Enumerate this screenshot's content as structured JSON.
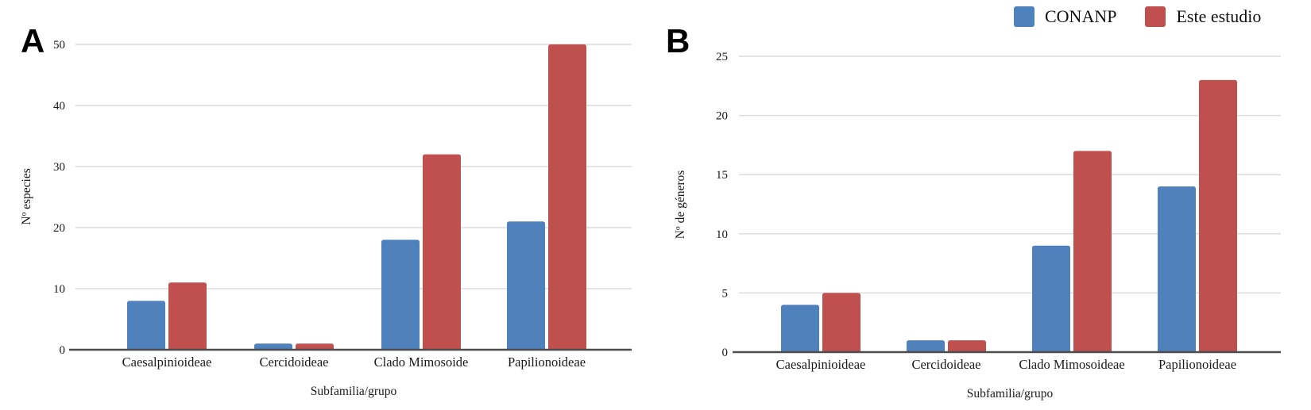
{
  "legend": {
    "position": "top-right",
    "items": [
      {
        "label": "CONANP",
        "color": "#4f81bd"
      },
      {
        "label": "Este estudio",
        "color": "#bf504e"
      }
    ]
  },
  "panels": [
    {
      "letter": "A"
    },
    {
      "letter": "B"
    }
  ],
  "colors": {
    "series_blue": "#4f81bd",
    "series_red": "#bf504e",
    "gridline": "#dcdcdc",
    "axis_line": "#4d4d4d",
    "text": "#1a1a1a"
  },
  "chart_data": [
    {
      "type": "bar",
      "panel": "A",
      "title": "",
      "xlabel": "Subfamilia/grupo",
      "ylabel": "Nº especies",
      "ylim": [
        0,
        50
      ],
      "yticks": [
        0,
        10,
        20,
        30,
        40,
        50
      ],
      "grid": true,
      "legend_position": "top-right",
      "categories": [
        "Caesalpinioideae",
        "Cercidoideae",
        "Clado Mimosoide",
        "Papilionoideae"
      ],
      "series": [
        {
          "name": "CONANP",
          "color": "#4f81bd",
          "values": [
            8,
            1,
            18,
            21
          ]
        },
        {
          "name": "Este estudio",
          "color": "#bf504e",
          "values": [
            11,
            1,
            32,
            50
          ]
        }
      ]
    },
    {
      "type": "bar",
      "panel": "B",
      "title": "",
      "xlabel": "Subfamilia/grupo",
      "ylabel": "Nº de géneros",
      "ylim": [
        0,
        25
      ],
      "yticks": [
        0,
        5,
        10,
        15,
        20,
        25
      ],
      "grid": true,
      "legend_position": "top-right",
      "categories": [
        "Caesalpinioideae",
        "Cercidoideae",
        "Clado Mimosoideae",
        "Papilionoideae"
      ],
      "series": [
        {
          "name": "CONANP",
          "color": "#4f81bd",
          "values": [
            4,
            1,
            9,
            14
          ]
        },
        {
          "name": "Este estudio",
          "color": "#bf504e",
          "values": [
            5,
            1,
            17,
            23
          ]
        }
      ]
    }
  ]
}
